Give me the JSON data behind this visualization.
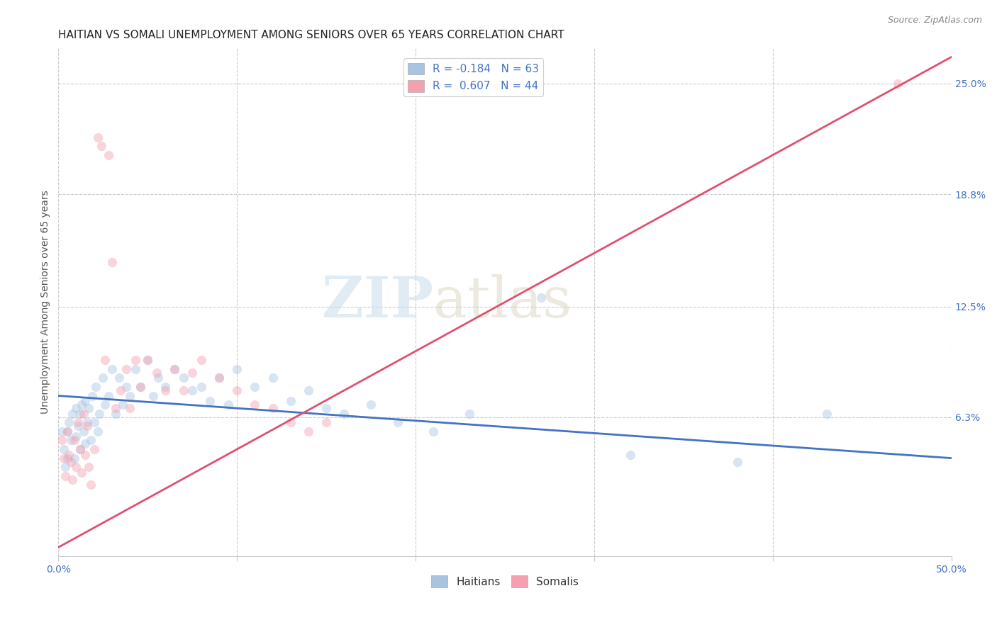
{
  "title": "HAITIAN VS SOMALI UNEMPLOYMENT AMONG SENIORS OVER 65 YEARS CORRELATION CHART",
  "source": "Source: ZipAtlas.com",
  "ylabel": "Unemployment Among Seniors over 65 years",
  "xlim": [
    0.0,
    0.5
  ],
  "ylim": [
    -0.015,
    0.27
  ],
  "right_yticks": [
    0.063,
    0.125,
    0.188,
    0.25
  ],
  "right_yticklabels": [
    "6.3%",
    "12.5%",
    "18.8%",
    "25.0%"
  ],
  "haitian_color": "#a8c4e0",
  "somali_color": "#f4a0b0",
  "haitian_line_color": "#4472c4",
  "somali_line_color": "#e05070",
  "background_color": "#ffffff",
  "grid_color": "#cccccc",
  "watermark_zip": "ZIP",
  "watermark_atlas": "atlas",
  "legend_r_haitian": "-0.184",
  "legend_n_haitian": "63",
  "legend_r_somali": "0.607",
  "legend_n_somali": "44",
  "haitian_x": [
    0.002,
    0.003,
    0.004,
    0.005,
    0.005,
    0.006,
    0.007,
    0.008,
    0.009,
    0.01,
    0.01,
    0.011,
    0.012,
    0.012,
    0.013,
    0.014,
    0.015,
    0.015,
    0.016,
    0.017,
    0.018,
    0.019,
    0.02,
    0.021,
    0.022,
    0.023,
    0.025,
    0.026,
    0.028,
    0.03,
    0.032,
    0.034,
    0.036,
    0.038,
    0.04,
    0.043,
    0.046,
    0.05,
    0.053,
    0.056,
    0.06,
    0.065,
    0.07,
    0.075,
    0.08,
    0.085,
    0.09,
    0.095,
    0.1,
    0.11,
    0.12,
    0.13,
    0.14,
    0.15,
    0.16,
    0.175,
    0.19,
    0.21,
    0.23,
    0.27,
    0.32,
    0.38,
    0.43
  ],
  "haitian_y": [
    0.055,
    0.045,
    0.035,
    0.055,
    0.04,
    0.06,
    0.05,
    0.065,
    0.04,
    0.068,
    0.052,
    0.058,
    0.065,
    0.045,
    0.07,
    0.055,
    0.072,
    0.048,
    0.06,
    0.068,
    0.05,
    0.075,
    0.06,
    0.08,
    0.055,
    0.065,
    0.085,
    0.07,
    0.075,
    0.09,
    0.065,
    0.085,
    0.07,
    0.08,
    0.075,
    0.09,
    0.08,
    0.095,
    0.075,
    0.085,
    0.08,
    0.09,
    0.085,
    0.078,
    0.08,
    0.072,
    0.085,
    0.07,
    0.09,
    0.08,
    0.085,
    0.072,
    0.078,
    0.068,
    0.065,
    0.07,
    0.06,
    0.055,
    0.065,
    0.13,
    0.042,
    0.038,
    0.065
  ],
  "somali_x": [
    0.002,
    0.003,
    0.004,
    0.005,
    0.006,
    0.007,
    0.008,
    0.009,
    0.01,
    0.011,
    0.012,
    0.013,
    0.014,
    0.015,
    0.016,
    0.017,
    0.018,
    0.02,
    0.022,
    0.024,
    0.026,
    0.028,
    0.03,
    0.032,
    0.035,
    0.038,
    0.04,
    0.043,
    0.046,
    0.05,
    0.055,
    0.06,
    0.065,
    0.07,
    0.075,
    0.08,
    0.09,
    0.1,
    0.11,
    0.12,
    0.13,
    0.14,
    0.15,
    0.47
  ],
  "somali_y": [
    0.05,
    0.04,
    0.03,
    0.055,
    0.042,
    0.038,
    0.028,
    0.05,
    0.035,
    0.06,
    0.045,
    0.032,
    0.065,
    0.042,
    0.058,
    0.035,
    0.025,
    0.045,
    0.22,
    0.215,
    0.095,
    0.21,
    0.15,
    0.068,
    0.078,
    0.09,
    0.068,
    0.095,
    0.08,
    0.095,
    0.088,
    0.078,
    0.09,
    0.078,
    0.088,
    0.095,
    0.085,
    0.078,
    0.07,
    0.068,
    0.06,
    0.055,
    0.06,
    0.25
  ],
  "haitian_line_x": [
    0.0,
    0.5
  ],
  "haitian_line_y": [
    0.075,
    0.04
  ],
  "somali_line_x": [
    0.0,
    0.5
  ],
  "somali_line_y": [
    -0.01,
    0.265
  ],
  "title_fontsize": 11,
  "axis_label_fontsize": 10,
  "tick_fontsize": 10,
  "legend_fontsize": 11,
  "marker_size": 90,
  "marker_alpha": 0.45,
  "line_width": 2.0
}
